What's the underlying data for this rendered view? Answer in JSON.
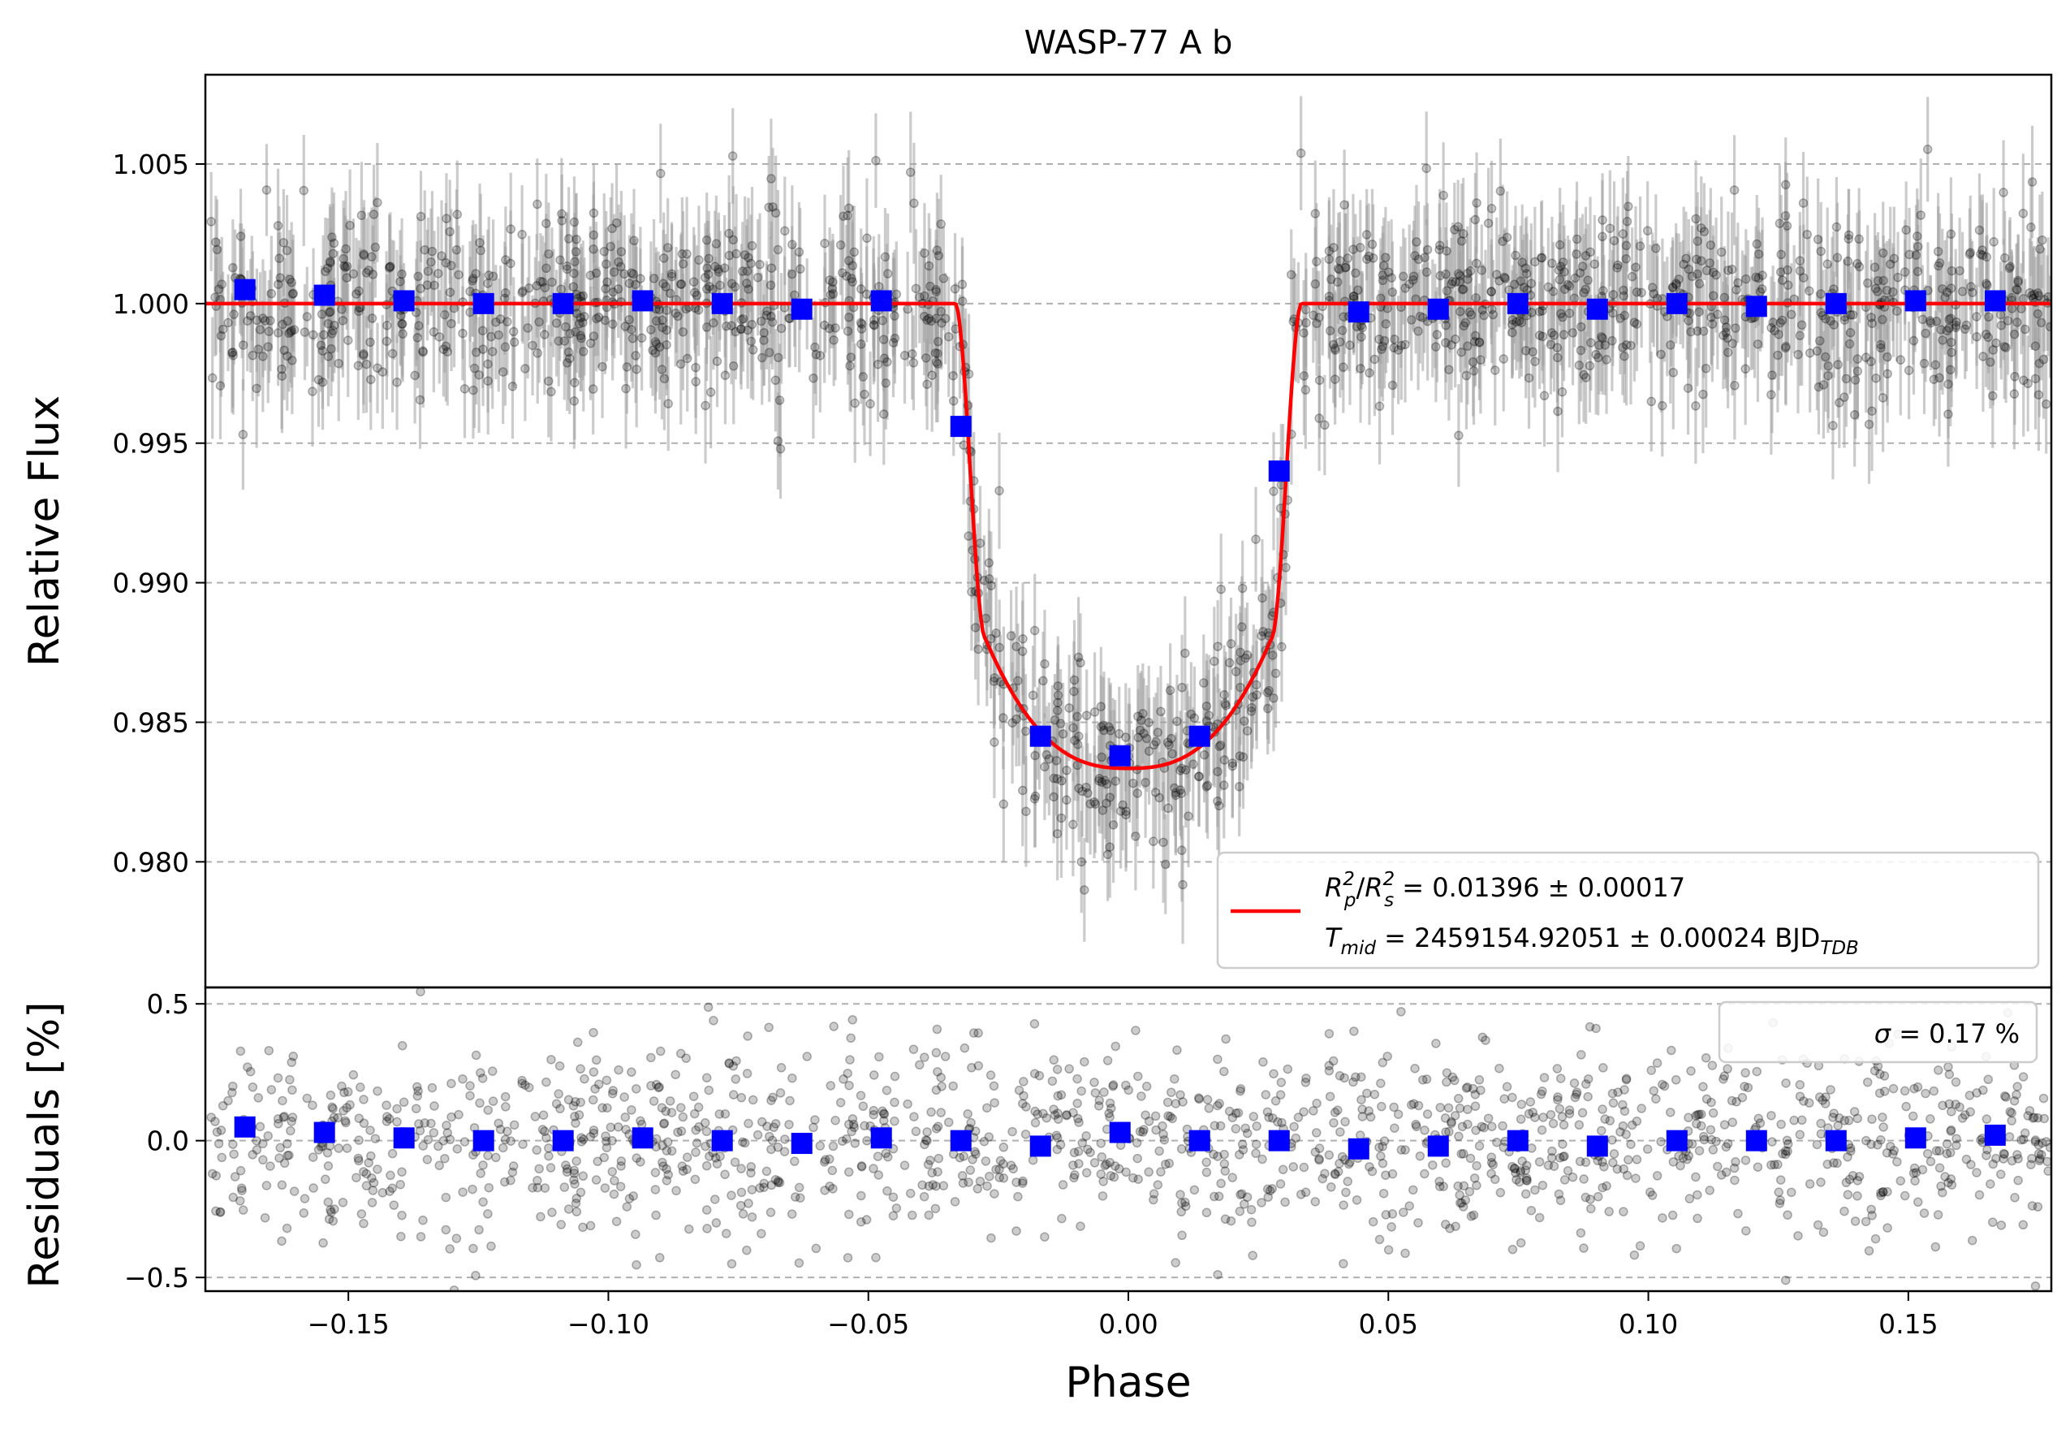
{
  "chart_data": [
    {
      "type": "scatter",
      "title": "WASP-77 A b",
      "xlabel": "",
      "ylabel": "Relative Flux",
      "xlim": [
        -0.1775,
        0.1775
      ],
      "ylim": [
        0.9755,
        1.0082
      ],
      "yticks": [
        0.98,
        0.985,
        0.99,
        0.995,
        1.0,
        1.005
      ],
      "ytick_labels": [
        "0.980",
        "0.985",
        "0.990",
        "0.995",
        "1.000",
        "1.005"
      ],
      "grid": "y-dashed",
      "series": [
        {
          "name": "observations",
          "style": "black points with grey error bars",
          "color": "#000000",
          "errorbar_color": "#a0a0a0",
          "scatter_sigma": 0.0017,
          "error_half_width": 0.0019
        },
        {
          "name": "binned",
          "color": "#0000ff",
          "marker": "square",
          "x": [
            -0.1699,
            -0.1546,
            -0.1393,
            -0.124,
            -0.1087,
            -0.0934,
            -0.0781,
            -0.0628,
            -0.0475,
            -0.0322,
            -0.0169,
            -0.0016,
            0.0137,
            0.029,
            0.0443,
            0.0596,
            0.0749,
            0.0902,
            0.1055,
            0.1208,
            0.1361,
            0.1514,
            0.1667
          ],
          "y": [
            1.0005,
            1.0003,
            1.0001,
            1.0,
            1.0,
            1.0001,
            1.0,
            0.9998,
            1.0001,
            0.9956,
            0.9845,
            0.9838,
            0.9845,
            0.994,
            0.9997,
            0.9998,
            1.0,
            0.9998,
            1.0,
            0.9999,
            1.0,
            1.0001,
            1.0001
          ]
        },
        {
          "name": "transit_model",
          "color": "#ff0000",
          "depth": 0.01396,
          "contact_phases": [
            -0.0333,
            -0.0275,
            0.0275,
            0.0333
          ],
          "min_flux": 0.98335,
          "flux_at_second_contact": 0.988
        }
      ],
      "legend": {
        "position": "lower-right",
        "line1_prefix": "R",
        "line1_sub_p": "p",
        "line1_sup": "2",
        "line1_sub_s": "s",
        "line1_value": " = 0.01396 ± 0.00017",
        "line2_prefix": "T",
        "line2_sub": "mid",
        "line2_value": " = 2459154.92051 ± 0.00024 BJD",
        "line2_unit_sub": "TDB"
      }
    },
    {
      "type": "scatter",
      "title": "",
      "xlabel": "Phase",
      "ylabel": "Residuals [%]",
      "xlim": [
        -0.1775,
        0.1775
      ],
      "ylim": [
        -0.55,
        0.56
      ],
      "xticks": [
        -0.15,
        -0.1,
        -0.05,
        0.0,
        0.05,
        0.1,
        0.15
      ],
      "xtick_labels": [
        "−0.15",
        "−0.10",
        "−0.05",
        "0.00",
        "0.05",
        "0.10",
        "0.15"
      ],
      "yticks": [
        -0.5,
        0.0,
        0.5
      ],
      "ytick_labels": [
        "−0.5",
        "0.0",
        "0.5"
      ],
      "grid": "y-dashed",
      "series": [
        {
          "name": "residuals",
          "color": "#000000",
          "scatter_sigma": 0.17
        },
        {
          "name": "binned_residuals",
          "color": "#0000ff",
          "marker": "square",
          "x": [
            -0.1699,
            -0.1546,
            -0.1393,
            -0.124,
            -0.1087,
            -0.0934,
            -0.0781,
            -0.0628,
            -0.0475,
            -0.0322,
            -0.0169,
            -0.0016,
            0.0137,
            0.029,
            0.0443,
            0.0596,
            0.0749,
            0.0902,
            0.1055,
            0.1208,
            0.1361,
            0.1514,
            0.1667
          ],
          "y": [
            0.05,
            0.03,
            0.01,
            0.0,
            0.0,
            0.01,
            0.0,
            -0.01,
            0.01,
            0.0,
            -0.02,
            0.03,
            0.0,
            0.0,
            -0.03,
            -0.02,
            0.0,
            -0.02,
            0.0,
            0.0,
            0.0,
            0.01,
            0.02
          ]
        }
      ],
      "legend": {
        "position": "top-right",
        "label_symbol": "σ",
        "label_value": " = 0.17 %"
      }
    }
  ]
}
